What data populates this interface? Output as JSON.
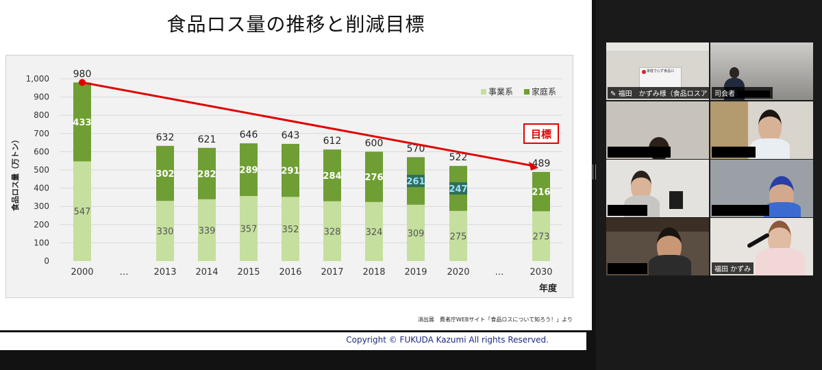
{
  "slide": {
    "title": "食品ロス量の推移と削減目標",
    "source_note": "消出展　費者庁WEBサイト「食品ロスについて知ろう！」より",
    "copyright": "Copyright © FUKUDA Kazumi All rights Reserved."
  },
  "chart_data": {
    "type": "bar",
    "stacked": true,
    "title": "",
    "ylabel": "食品ロス量（万トン）",
    "xlabel": "年度",
    "ylim": [
      0,
      1000
    ],
    "yticks": [
      "0",
      "100",
      "200",
      "300",
      "400",
      "500",
      "600",
      "700",
      "800",
      "900",
      "1,000"
    ],
    "categories": [
      "2000",
      "…",
      "2013",
      "2014",
      "2015",
      "2016",
      "2017",
      "2018",
      "2019",
      "2020",
      "…",
      "2030"
    ],
    "series": [
      {
        "name": "事業系",
        "values": [
          547,
          null,
          330,
          339,
          357,
          352,
          328,
          324,
          309,
          275,
          null,
          273
        ],
        "color": "#c5df9e"
      },
      {
        "name": "家庭系",
        "values": [
          433,
          null,
          302,
          282,
          289,
          291,
          284,
          276,
          261,
          247,
          null,
          216
        ],
        "color": "#6f9e34"
      }
    ],
    "totals": [
      980,
      null,
      632,
      621,
      646,
      643,
      612,
      600,
      570,
      522,
      null,
      489
    ],
    "target_label": "目標",
    "target_color": "#e00000",
    "legend_position": "top-right",
    "grid": true
  },
  "gallery": {
    "participants": [
      {
        "name": "福田　かずみ様（食品ロスアド…",
        "active": true
      },
      {
        "name": "司会者",
        "redacted": true
      },
      {
        "name": "",
        "redacted": true
      },
      {
        "name": "",
        "redacted": true
      },
      {
        "name": "",
        "redacted": true
      },
      {
        "name": "",
        "redacted": true
      },
      {
        "name": "",
        "redacted": true
      },
      {
        "name": "福田 かずみ"
      }
    ],
    "screen_text": "家庭で心ず食品ロ"
  }
}
